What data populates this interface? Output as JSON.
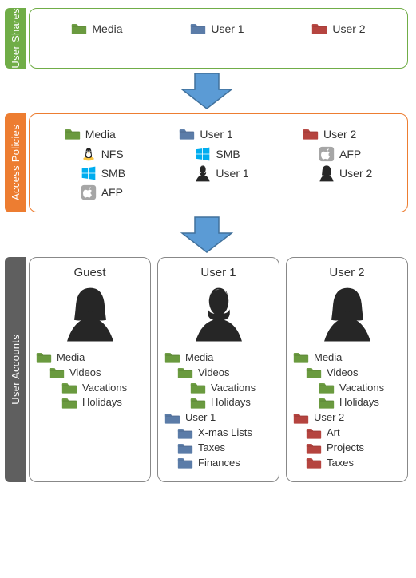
{
  "colors": {
    "green": "#70ad47",
    "orange": "#ed7d31",
    "gray": "#5f5f5f",
    "folder_green": "#6a9a3f",
    "folder_blue": "#5b7ca8",
    "folder_red": "#b5443f",
    "arrow_fill": "#5b9bd5",
    "arrow_stroke": "#41719c",
    "silhouette": "#262626",
    "win_blue": "#00adef",
    "apple_gray": "#a6a6a6"
  },
  "sections": {
    "shares": {
      "tab": "User Shares",
      "items": [
        {
          "label": "Media",
          "color": "green"
        },
        {
          "label": "User 1",
          "color": "blue"
        },
        {
          "label": "User 2",
          "color": "red"
        }
      ]
    },
    "policies": {
      "tab": "Access Policies",
      "groups": [
        {
          "folder": {
            "label": "Media",
            "color": "green"
          },
          "subs": [
            {
              "icon": "linux",
              "label": "NFS"
            },
            {
              "icon": "windows",
              "label": "SMB"
            },
            {
              "icon": "apple",
              "label": "AFP"
            }
          ]
        },
        {
          "folder": {
            "label": "User 1",
            "color": "blue"
          },
          "subs": [
            {
              "icon": "windows",
              "label": "SMB"
            },
            {
              "icon": "person-m",
              "label": "User 1"
            }
          ]
        },
        {
          "folder": {
            "label": "User 2",
            "color": "red"
          },
          "subs": [
            {
              "icon": "apple",
              "label": "AFP"
            },
            {
              "icon": "person-f",
              "label": "User 2"
            }
          ]
        }
      ]
    },
    "accounts": {
      "tab": "User Accounts",
      "cards": [
        {
          "title": "Guest",
          "avatar": "person-f",
          "tree": [
            {
              "label": "Media",
              "color": "green",
              "indent": 0
            },
            {
              "label": "Videos",
              "color": "green",
              "indent": 1
            },
            {
              "label": "Vacations",
              "color": "green",
              "indent": 2
            },
            {
              "label": "Holidays",
              "color": "green",
              "indent": 2
            }
          ]
        },
        {
          "title": "User 1",
          "avatar": "person-m",
          "tree": [
            {
              "label": "Media",
              "color": "green",
              "indent": 0
            },
            {
              "label": "Videos",
              "color": "green",
              "indent": 1
            },
            {
              "label": "Vacations",
              "color": "green",
              "indent": 2
            },
            {
              "label": "Holidays",
              "color": "green",
              "indent": 2
            },
            {
              "label": "User 1",
              "color": "blue",
              "indent": 0
            },
            {
              "label": "X-mas Lists",
              "color": "blue",
              "indent": 1
            },
            {
              "label": "Taxes",
              "color": "blue",
              "indent": 1
            },
            {
              "label": "Finances",
              "color": "blue",
              "indent": 1
            }
          ]
        },
        {
          "title": "User 2",
          "avatar": "person-f",
          "tree": [
            {
              "label": "Media",
              "color": "green",
              "indent": 0
            },
            {
              "label": "Videos",
              "color": "green",
              "indent": 1
            },
            {
              "label": "Vacations",
              "color": "green",
              "indent": 2
            },
            {
              "label": "Holidays",
              "color": "green",
              "indent": 2
            },
            {
              "label": "User 2",
              "color": "red",
              "indent": 0
            },
            {
              "label": "Art",
              "color": "red",
              "indent": 1
            },
            {
              "label": "Projects",
              "color": "red",
              "indent": 1
            },
            {
              "label": "Taxes",
              "color": "red",
              "indent": 1
            }
          ]
        }
      ]
    }
  }
}
